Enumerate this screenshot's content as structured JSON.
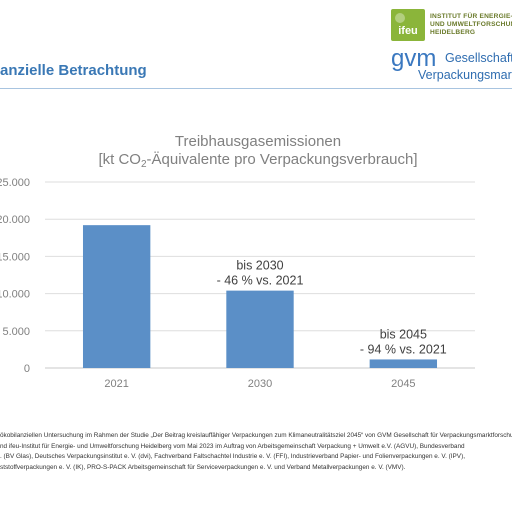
{
  "header": {
    "page_title": "anzielle Betrachtung",
    "ifeu_logo_text": "ifeu",
    "ifeu_name_lines": [
      "INSTITUT FÜR ENERGIE-",
      "UND UMWELTFORSCHUNG",
      "HEIDELBERG"
    ],
    "gvm_logo_text": "gvm",
    "gvm_name_lines": [
      "Gesellschaft",
      "Verpackungsmarkt"
    ]
  },
  "chart_data": {
    "type": "bar",
    "title": "Treibhausgasemissionen",
    "subtitle_parts": [
      "[kt CO",
      "2",
      "-Äquivalente pro Verpackungsverbrauch]"
    ],
    "categories": [
      "2021",
      "2030",
      "2045"
    ],
    "values": [
      19200,
      10400,
      1150
    ],
    "ylim": [
      0,
      25000
    ],
    "ytick_labels": [
      "0",
      "5.000",
      "10.000",
      "15.000",
      "20.000",
      "25.000"
    ],
    "grid": true,
    "bar_color": "#5b8fc7",
    "annotations": [
      {
        "category": "2030",
        "lines": [
          "bis 2030",
          "- 46 % vs. 2021"
        ]
      },
      {
        "category": "2045",
        "lines": [
          "bis 2045",
          "- 94 % vs. 2021"
        ]
      }
    ]
  },
  "footnote": {
    "lines": [
      "ökobilanziellen Untersuchung im Rahmen der Studie „Der Beitrag kreislauffähiger Verpackungen zum Klimaneutralitätsziel 2045“ von GVM Gesellschaft für Verpackungsmarktforschung",
      "nd ifeu-Institut für Energie- und Umweltforschung Heidelberg vom Mai 2023 im Auftrag von Arbeitsgemeinschaft Verpackung + Umwelt e.V. (AGVU), Bundesverband",
      ". (BV Glas), Deutsches Verpackungsinstitut e. V. (dvi), Fachverband Faltschachtel Industrie e. V. (FFI), Industrieverband Papier- und Folienverpackungen e. V. (IPV),",
      "ststoffverpackungen e. V. (IK), PRO-S-PACK Arbeitsgemeinschaft für Serviceverpackungen e. V. und Verband Metallverpackungen e. V. (VMV)."
    ]
  }
}
